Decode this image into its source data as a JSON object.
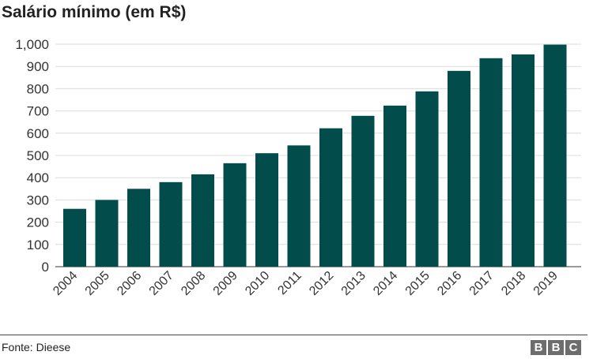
{
  "chart_data": {
    "type": "bar",
    "title": "Salário mínimo (em R$)",
    "categories": [
      "2004",
      "2005",
      "2006",
      "2007",
      "2008",
      "2009",
      "2010",
      "2011",
      "2012",
      "2013",
      "2014",
      "2015",
      "2016",
      "2017",
      "2018",
      "2019"
    ],
    "values": [
      260,
      300,
      350,
      380,
      415,
      465,
      510,
      545,
      622,
      678,
      724,
      788,
      880,
      937,
      954,
      998
    ],
    "ylim": [
      0,
      1000
    ],
    "yticks": [
      0,
      100,
      200,
      300,
      400,
      500,
      600,
      700,
      800,
      900,
      1000
    ],
    "ytick_labels": [
      "0",
      "100",
      "200",
      "300",
      "400",
      "500",
      "600",
      "700",
      "800",
      "900",
      "1,000"
    ],
    "grid": true,
    "bar_color": "#024d4c",
    "xlabel": "",
    "ylabel": ""
  },
  "footer": {
    "source": "Fonte: Dieese",
    "logo": [
      "B",
      "B",
      "C"
    ]
  }
}
